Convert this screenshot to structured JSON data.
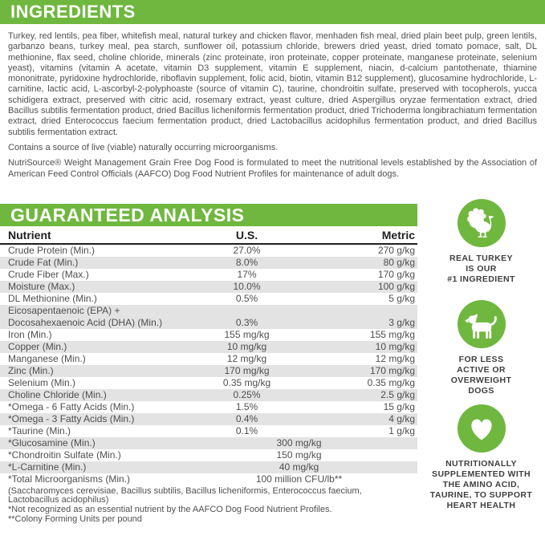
{
  "colors": {
    "accent_green": "#6fb73e",
    "row_alt_gray": "#e3e3e3",
    "text_gray": "#4f4f51",
    "header_text": "#ffffff",
    "table_header_black": "#1f1f21"
  },
  "ingredients": {
    "title": "INGREDIENTS",
    "body": "Turkey, red lentils, pea fiber, whitefish meal, natural turkey and chicken flavor, menhaden fish meal, dried plain beet pulp, green lentils, garbanzo beans, turkey meal, pea starch, sunflower oil, potassium chloride, brewers dried yeast, dried tomato pomace, salt, DL methionine, flax seed, choline chloride, minerals (zinc proteinate, iron proteinate, copper proteinate, manganese proteinate, selenium yeast), vitamins (vitamin A acetate, vitamin D3 supplement, vitamin E supplement, niacin, d-calcium pantothenate, thiamine mononitrate, pyridoxine hydrochloride, riboflavin supplement, folic acid, biotin, vitamin B12 supplement), glucosamine hydrochloride, L-carnitine, lactic acid, L-ascorbyl-2-polyphoaste (source of vitamin C), taurine, chondroitin sulfate, preserved with tocopherols, yucca schidigera extract, preserved with citric acid, rosemary extract, yeast culture, dried Aspergillus oryzae fermentation extract, dried Bacillus subtilis fermentation product, dried Bacillus licheniformis fermentation product, dried Trichoderma longibrachiatum fermentation extract, dried Enterococcus faecium fermentation product, dried Lactobacillus acidophilus fermentation product, and dried Bacillus subtilis fermentation extract.",
    "note": "Contains a source of live (viable) naturally occurring microorganisms.",
    "aafco": "NutriSource® Weight Management Grain Free Dog Food is formulated to meet the nutritional levels established by the Association of American Feed Control Officials (AAFCO) Dog Food Nutrient Profiles for maintenance of adult dogs."
  },
  "analysis": {
    "title": "GUARANTEED ANALYSIS",
    "columns": [
      "Nutrient",
      "U.S.",
      "Metric"
    ],
    "rows": [
      {
        "nutrient": "Crude Protein (Min.)",
        "us": "27.0%",
        "metric": "270 g/kg"
      },
      {
        "nutrient": "Crude Fat (Min.)",
        "us": "8.0%",
        "metric": "80 g/kg"
      },
      {
        "nutrient": "Crude Fiber (Max.)",
        "us": "17%",
        "metric": "170 g/kg"
      },
      {
        "nutrient": "Moisture (Max.)",
        "us": "10.0%",
        "metric": "100 g/kg"
      },
      {
        "nutrient": "DL Methionine (Min.)",
        "us": "0.5%",
        "metric": "5 g/kg"
      },
      {
        "nutrient": "Eicosapentaenoic (EPA) +\nDocosahexaenoic Acid (DHA) (Min.)",
        "us": "0.3%",
        "metric": "3 g/kg"
      },
      {
        "nutrient": "Iron (Min.)",
        "us": "155 mg/kg",
        "metric": "155 mg/kg"
      },
      {
        "nutrient": "Copper (Min.)",
        "us": "10 mg/kg",
        "metric": "10 mg/kg"
      },
      {
        "nutrient": "Manganese (Min.)",
        "us": "12 mg/kg",
        "metric": "12 mg/kg"
      },
      {
        "nutrient": "Zinc (Min.)",
        "us": "170 mg/kg",
        "metric": "170 mg/kg"
      },
      {
        "nutrient": "Selenium (Min.)",
        "us": "0.35 mg/kg",
        "metric": "0.35 mg/kg"
      },
      {
        "nutrient": "Choline Chloride (Min.)",
        "us": "0.25%",
        "metric": "2.5 g/kg"
      },
      {
        "nutrient": "*Omega - 6 Fatty Acids (Min.)",
        "us": "1.5%",
        "metric": "15 g/kg"
      },
      {
        "nutrient": "*Omega - 3 Fatty Acids (Min.)",
        "us": "0.4%",
        "metric": "4 g/kg"
      },
      {
        "nutrient": "*Taurine (Min.)",
        "us": "0.1%",
        "metric": "1 g/kg"
      },
      {
        "nutrient": "*Glucosamine (Min.)",
        "span": "300 mg/kg"
      },
      {
        "nutrient": "*Chondroitin Sulfate (Min.)",
        "span": "150 mg/kg"
      },
      {
        "nutrient": "*L-Carnitine (Min.)",
        "span": "40 mg/kg"
      },
      {
        "nutrient": "*Total Microorganisms (Min.)",
        "span": "100 million CFU/lb**"
      }
    ],
    "footnotes": [
      "(Saccharomyces cerevisiae, Bacillus subtilis, Bacillus licheniformis, Enterococcus faecium, Lactobacillus acidophilus)",
      "*Not recognized as an essential nutrient by the AAFCO Dog Food Nutrient Profiles.",
      "**Colony Forming Units per pound"
    ]
  },
  "badges": [
    {
      "icon": "turkey-icon",
      "lines": [
        "REAL TURKEY",
        "IS OUR",
        "#1 INGREDIENT"
      ]
    },
    {
      "icon": "dog-icon",
      "lines": [
        "FOR LESS",
        "ACTIVE OR",
        "OVERWEIGHT",
        "DOGS"
      ]
    },
    {
      "icon": "heart-icon",
      "lines": [
        "NUTRITIONALLY",
        "SUPPLEMENTED WITH",
        "THE AMINO ACID,",
        "TAURINE, TO SUPPORT",
        "HEART HEALTH"
      ]
    }
  ]
}
